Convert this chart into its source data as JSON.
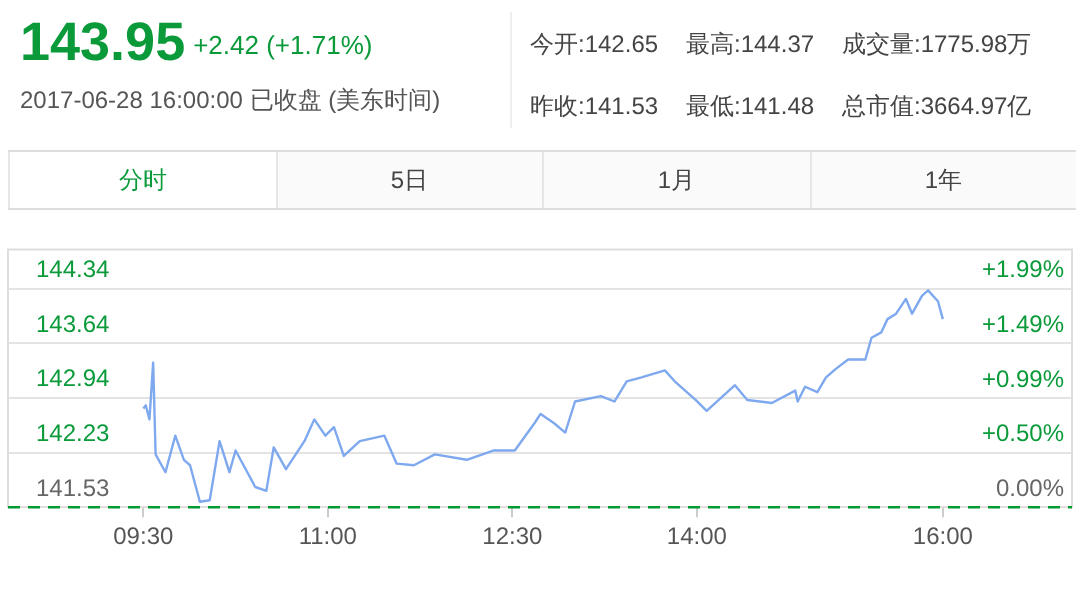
{
  "chart_data": {
    "type": "line",
    "title": "143.95",
    "subtitle": "+2.42 (+1.71%)",
    "annotations": [
      "2017-06-28 16:00:00 已收盘 (美东时间)",
      "今开:142.65",
      "最高:144.37",
      "成交量:1775.98万",
      "昨收:141.53",
      "最低:141.48",
      "总市值:3664.97亿",
      "分时",
      "5日",
      "1月",
      "1年"
    ],
    "series": [
      {
        "color": "#7fa9ef",
        "x": [
          9.5,
          9.52,
          9.55,
          9.58,
          9.6,
          9.68,
          9.76,
          9.83,
          9.88,
          9.96,
          10.04,
          10.12,
          10.2,
          10.25,
          10.41,
          10.5,
          10.56,
          10.66,
          10.81,
          10.89,
          10.98,
          11.05,
          11.13,
          11.26,
          11.46,
          11.56,
          11.7,
          11.87,
          12.13,
          12.35,
          12.52,
          12.68,
          12.73,
          12.84,
          12.93,
          13.01,
          13.22,
          13.33,
          13.43,
          13.55,
          13.74,
          13.82,
          13.99,
          14.08,
          14.31,
          14.41,
          14.61,
          14.8,
          14.82,
          14.88,
          14.98,
          15.05,
          15.13,
          15.23,
          15.37,
          15.42,
          15.5,
          15.55,
          15.62,
          15.7,
          15.75,
          15.83,
          15.88,
          15.96,
          16.0
        ],
        "values": [
          142.8,
          142.84,
          142.66,
          143.39,
          142.21,
          141.98,
          142.45,
          142.14,
          142.07,
          141.6,
          141.62,
          142.38,
          141.98,
          142.26,
          141.79,
          141.74,
          142.3,
          142.02,
          142.38,
          142.66,
          142.45,
          142.56,
          142.19,
          142.38,
          142.45,
          142.09,
          142.07,
          142.21,
          142.14,
          142.26,
          142.26,
          142.61,
          142.73,
          142.61,
          142.49,
          142.89,
          142.96,
          142.89,
          143.15,
          143.2,
          143.29,
          143.15,
          142.91,
          142.77,
          143.1,
          142.91,
          142.87,
          143.03,
          142.89,
          143.08,
          143.01,
          143.2,
          143.31,
          143.43,
          143.43,
          143.71,
          143.78,
          143.95,
          144.02,
          144.21,
          144.02,
          144.25,
          144.32,
          144.18,
          143.95
        ]
      }
    ],
    "xlim": [
      8.4,
      17.05
    ],
    "xticks": [
      {
        "value": 9.5,
        "label": "09:30"
      },
      {
        "value": 11,
        "label": "11:00"
      },
      {
        "value": 12.5,
        "label": "12:30"
      },
      {
        "value": 14,
        "label": "14:00"
      },
      {
        "value": 16,
        "label": "16:00"
      }
    ],
    "ylim": [
      141.53,
      144.86
    ],
    "yticks": [
      141.53,
      142.23,
      142.94,
      143.64,
      144.34
    ],
    "y2lim": [
      0,
      2.35
    ],
    "y2ticks": [
      {
        "value": 0,
        "label": "0.00%"
      },
      {
        "value": 0.5,
        "label": "+0.50%"
      },
      {
        "value": 0.99,
        "label": "+0.99%"
      },
      {
        "value": 1.49,
        "label": "+1.49%"
      },
      {
        "value": 1.99,
        "label": "+1.99%"
      }
    ],
    "ref_lines": [
      {
        "axis": "y",
        "value": 141.53,
        "color": "#009933",
        "line_style": "dashed"
      }
    ],
    "grid": "y",
    "legend": false,
    "marker": "none",
    "line_style": "solid"
  }
}
